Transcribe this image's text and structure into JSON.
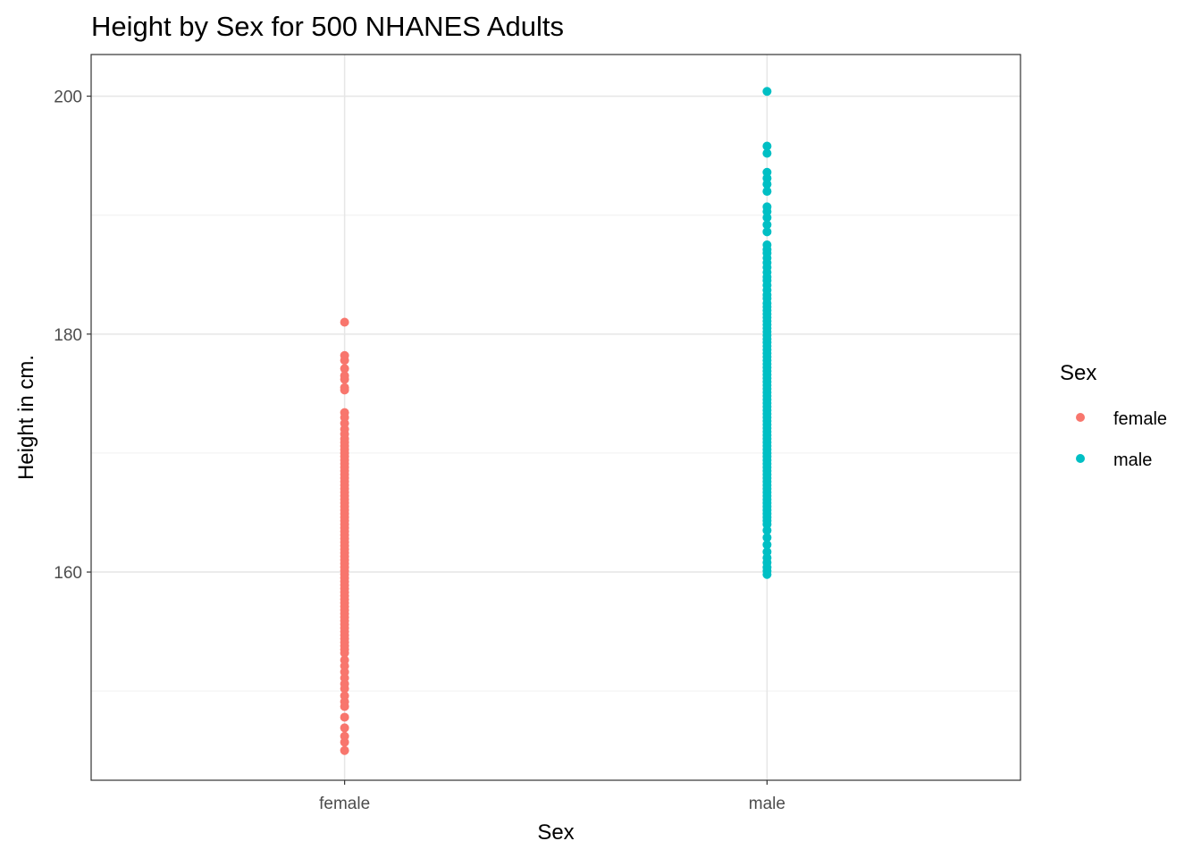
{
  "chart_data": {
    "type": "scatter",
    "title": "Height by Sex for 500 NHANES Adults",
    "xlabel": "Sex",
    "ylabel": "Height in cm.",
    "categories": [
      "female",
      "male"
    ],
    "ylim": [
      142.5,
      203.5
    ],
    "yticks": [
      160,
      180,
      200
    ],
    "yminor": [
      150,
      170,
      190
    ],
    "grid": true,
    "legend": {
      "title": "Sex",
      "placement": "right",
      "entries": [
        "female",
        "male"
      ]
    },
    "colors": {
      "female": "#F8766D",
      "male": "#00BFC4"
    },
    "series": [
      {
        "name": "female",
        "x": "female",
        "values": [
          181.0,
          178.2,
          177.8,
          177.1,
          176.5,
          176.2,
          175.5,
          175.3,
          173.4,
          173.0,
          172.5,
          172.0,
          171.6,
          171.2,
          170.9,
          170.6,
          170.3,
          170.0,
          169.7,
          169.4,
          169.1,
          168.8,
          168.5,
          168.2,
          167.9,
          167.6,
          167.3,
          167.0,
          166.7,
          166.4,
          166.1,
          165.8,
          165.5,
          165.2,
          164.9,
          164.6,
          164.3,
          164.0,
          163.7,
          163.4,
          163.1,
          162.8,
          162.5,
          162.2,
          161.9,
          161.6,
          161.3,
          161.0,
          160.7,
          160.4,
          160.1,
          159.8,
          159.5,
          159.2,
          158.9,
          158.6,
          158.3,
          158.0,
          157.7,
          157.4,
          157.1,
          156.8,
          156.5,
          156.2,
          155.9,
          155.6,
          155.3,
          155.0,
          154.7,
          154.4,
          154.1,
          153.8,
          153.5,
          153.2,
          152.6,
          152.1,
          151.6,
          151.1,
          150.6,
          150.2,
          149.6,
          149.1,
          148.7,
          147.8,
          146.9,
          146.2,
          145.7,
          145.0
        ]
      },
      {
        "name": "male",
        "x": "male",
        "values": [
          200.4,
          195.8,
          195.2,
          193.6,
          193.1,
          192.6,
          192.0,
          190.7,
          190.3,
          189.8,
          189.2,
          188.6,
          187.5,
          187.1,
          186.8,
          186.4,
          186.0,
          185.6,
          185.2,
          184.8,
          184.5,
          184.1,
          183.7,
          183.3,
          183.0,
          182.6,
          182.3,
          182.0,
          181.7,
          181.4,
          181.1,
          180.8,
          180.5,
          180.2,
          179.9,
          179.6,
          179.3,
          179.0,
          178.7,
          178.4,
          178.1,
          177.8,
          177.5,
          177.2,
          176.9,
          176.6,
          176.3,
          176.0,
          175.7,
          175.4,
          175.1,
          174.8,
          174.5,
          174.2,
          173.9,
          173.6,
          173.3,
          173.0,
          172.7,
          172.4,
          172.1,
          171.8,
          171.5,
          171.2,
          170.9,
          170.6,
          170.3,
          170.0,
          169.7,
          169.4,
          169.1,
          168.8,
          168.5,
          168.2,
          167.9,
          167.6,
          167.3,
          167.0,
          166.7,
          166.4,
          166.1,
          165.8,
          165.5,
          165.2,
          164.9,
          164.6,
          164.3,
          164.0,
          163.5,
          162.9,
          162.3,
          161.7,
          161.2,
          160.8,
          160.4,
          160.1,
          159.8
        ]
      }
    ]
  }
}
